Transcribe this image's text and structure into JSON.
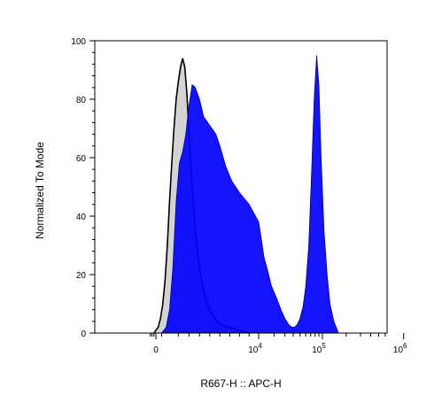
{
  "chart_data": {
    "type": "area",
    "title": "",
    "xlabel": "R667-H :: APC-H",
    "ylabel": "Normalized To Mode",
    "x_scale": "biexponential",
    "xlim": [
      -2000,
      1000000
    ],
    "ylim": [
      0,
      100
    ],
    "y_ticks": [
      0,
      20,
      40,
      60,
      80,
      100
    ],
    "x_ticks": [
      {
        "value": 0,
        "label": "0"
      },
      {
        "value": 10000,
        "label": "10",
        "exp": "4"
      },
      {
        "value": 100000,
        "label": "10",
        "exp": "5"
      },
      {
        "value": 1000000,
        "label": "10",
        "exp": "6"
      }
    ],
    "grid": false,
    "legend": "none",
    "series": [
      {
        "color": "#d3d3d3",
        "stroke": "#000000",
        "x": [
          -500,
          0,
          200,
          400,
          600,
          800,
          1000,
          1200,
          1400,
          1600,
          1800,
          2000,
          2200,
          2400,
          2600,
          2800,
          3000,
          3300,
          3600,
          4000,
          4500,
          5000,
          5500,
          6000,
          7000,
          8000,
          9000
        ],
        "y": [
          0,
          1,
          2,
          5,
          10,
          18,
          30,
          45,
          58,
          70,
          80,
          86,
          91,
          94,
          91,
          82,
          68,
          50,
          35,
          22,
          13,
          8,
          5,
          3,
          2,
          1,
          0
        ]
      },
      {
        "color": "#0000ff",
        "stroke": "#000080",
        "x": [
          500,
          900,
          1200,
          1500,
          1800,
          2100,
          2400,
          2700,
          3000,
          3300,
          3600,
          4000,
          4400,
          4800,
          5200,
          5600,
          6000,
          6600,
          7200,
          8000,
          9000,
          10000,
          11500,
          13000,
          15000,
          18000,
          22000,
          26000,
          30000,
          34000,
          38000,
          42000,
          46000,
          50000,
          55000,
          60000,
          66000,
          72000,
          78000,
          84000,
          90000,
          96000,
          105000,
          115000,
          125000,
          140000,
          160000
        ],
        "y": [
          0,
          2,
          8,
          22,
          45,
          58,
          62,
          68,
          78,
          85,
          84,
          80,
          74,
          72,
          70,
          68,
          64,
          57,
          52,
          48,
          44,
          38,
          32,
          26,
          22,
          16,
          12,
          8,
          5,
          3,
          2,
          2,
          3,
          5,
          9,
          16,
          30,
          55,
          80,
          95,
          85,
          60,
          35,
          20,
          10,
          4,
          0
        ]
      }
    ]
  }
}
